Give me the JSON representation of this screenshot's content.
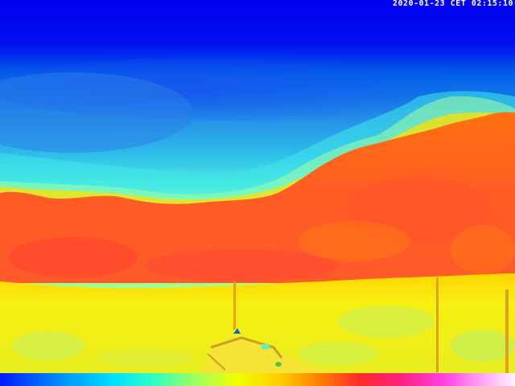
{
  "overlay": {
    "timestamp": "2020-01-23 CET 02:15:10"
  },
  "scene": {
    "description_colors": {
      "sky_top": "#0000f0",
      "sky_mid": "#1a7be0",
      "sky_low": "#40e0f0",
      "treeline": "#ff6a20",
      "ground": "#f0ee20",
      "ground_light": "#c8f060"
    }
  },
  "palette": {
    "icon": "thermal-color-scale"
  }
}
